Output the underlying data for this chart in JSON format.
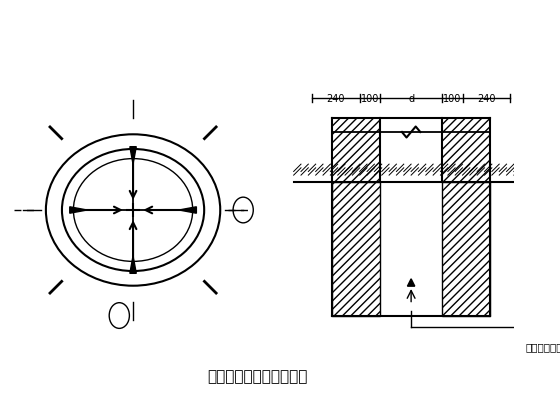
{
  "bg_color": "#ffffff",
  "title": "挖孔桩轴线、标高示意图",
  "title_fontsize": 11,
  "annotation_text": "标高控制标记",
  "dim_labels": [
    "240",
    "100",
    "d",
    "100",
    "240"
  ],
  "line_color": "#000000",
  "hatch_color": "#000000"
}
